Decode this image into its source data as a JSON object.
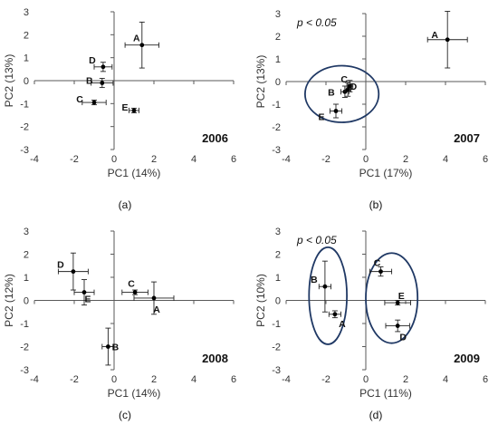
{
  "chart_data": [
    {
      "type": "scatter",
      "panel_label": "(a)",
      "year_label": "2006",
      "annotation": "",
      "xlabel": "PC1 (14%)",
      "ylabel": "PC2 (13%)",
      "xlim": [
        -4,
        6
      ],
      "ylim": [
        -3,
        3
      ],
      "xticks": [
        "-4",
        "-2",
        "0",
        "2",
        "4",
        "6"
      ],
      "yticks": [
        "-3",
        "-2",
        "-1",
        "0",
        "1",
        "2",
        "3"
      ],
      "grid": false,
      "points": [
        {
          "label": "A",
          "x": 1.4,
          "y": 1.55,
          "xerr": 0.85,
          "yerr": 1.0
        },
        {
          "label": "B",
          "x": -0.6,
          "y": -0.1,
          "xerr": 0.55,
          "yerr": 0.2
        },
        {
          "label": "C",
          "x": -1.0,
          "y": -0.95,
          "xerr": 0.6,
          "yerr": 0.1
        },
        {
          "label": "D",
          "x": -0.55,
          "y": 0.6,
          "xerr": 0.45,
          "yerr": 0.2
        },
        {
          "label": "E",
          "x": 1.0,
          "y": -1.3,
          "xerr": 0.25,
          "yerr": 0.1
        }
      ],
      "ellipses": []
    },
    {
      "type": "scatter",
      "panel_label": "(b)",
      "year_label": "2007",
      "annotation": "p < 0.05",
      "xlabel": "PC1 (17%)",
      "ylabel": "PC2 (13%)",
      "xlim": [
        -4,
        6
      ],
      "ylim": [
        -3,
        3
      ],
      "xticks": [
        "-4",
        "-2",
        "0",
        "2",
        "4",
        "6"
      ],
      "yticks": [
        "-3",
        "-2",
        "-1",
        "0",
        "1",
        "2",
        "3"
      ],
      "grid": false,
      "points": [
        {
          "label": "A",
          "x": 4.1,
          "y": 1.85,
          "xerr": 1.0,
          "yerr": 1.25
        },
        {
          "label": "B",
          "x": -1.05,
          "y": -0.45,
          "xerr": 0.2,
          "yerr": 0.25
        },
        {
          "label": "C",
          "x": -0.9,
          "y": -0.35,
          "xerr": 0.15,
          "yerr": 0.3
        },
        {
          "label": "D",
          "x": -0.8,
          "y": -0.2,
          "xerr": 0.15,
          "yerr": 0.25
        },
        {
          "label": "E",
          "x": -1.5,
          "y": -1.3,
          "xerr": 0.3,
          "yerr": 0.3
        }
      ],
      "ellipses": [
        {
          "cx": -1.2,
          "cy": -0.55,
          "rx": 1.85,
          "ry": 1.25
        }
      ]
    },
    {
      "type": "scatter",
      "panel_label": "(c)",
      "year_label": "2008",
      "annotation": "",
      "xlabel": "PC1 (14%)",
      "ylabel": "PC2 (12%)",
      "xlim": [
        -4,
        6
      ],
      "ylim": [
        -3,
        3
      ],
      "xticks": [
        "-4",
        "-2",
        "0",
        "2",
        "4",
        "6"
      ],
      "yticks": [
        "-3",
        "-2",
        "-1",
        "0",
        "1",
        "2",
        "3"
      ],
      "grid": false,
      "points": [
        {
          "label": "A",
          "x": 2.0,
          "y": 0.1,
          "xerr": 1.0,
          "yerr": 0.7
        },
        {
          "label": "B",
          "x": -0.3,
          "y": -2.0,
          "xerr": 0.3,
          "yerr": 0.8
        },
        {
          "label": "C",
          "x": 1.05,
          "y": 0.35,
          "xerr": 0.65,
          "yerr": 0.1
        },
        {
          "label": "D",
          "x": -2.05,
          "y": 1.25,
          "xerr": 0.75,
          "yerr": 0.8
        },
        {
          "label": "E",
          "x": -1.5,
          "y": 0.35,
          "xerr": 0.5,
          "yerr": 0.55
        }
      ],
      "ellipses": []
    },
    {
      "type": "scatter",
      "panel_label": "(d)",
      "year_label": "2009",
      "annotation": "p < 0.05",
      "xlabel": "PC1 (11%)",
      "ylabel": "PC2 (10%)",
      "xlim": [
        -4,
        6
      ],
      "ylim": [
        -3,
        3
      ],
      "xticks": [
        "-4",
        "-2",
        "0",
        "2",
        "4",
        "6"
      ],
      "yticks": [
        "-3",
        "-2",
        "-1",
        "0",
        "1",
        "2",
        "3"
      ],
      "grid": false,
      "points": [
        {
          "label": "A",
          "x": -1.55,
          "y": -0.6,
          "xerr": 0.3,
          "yerr": 0.15
        },
        {
          "label": "B",
          "x": -2.05,
          "y": 0.6,
          "xerr": 0.3,
          "yerr": 1.1
        },
        {
          "label": "C",
          "x": 0.75,
          "y": 1.25,
          "xerr": 0.55,
          "yerr": 0.2
        },
        {
          "label": "D",
          "x": 1.6,
          "y": -1.1,
          "xerr": 0.6,
          "yerr": 0.25
        },
        {
          "label": "E",
          "x": 1.6,
          "y": -0.1,
          "xerr": 0.65,
          "yerr": 0.1
        }
      ],
      "ellipses": [
        {
          "cx": -1.9,
          "cy": 0.2,
          "rx": 0.95,
          "ry": 2.1
        },
        {
          "cx": 1.3,
          "cy": 0.1,
          "rx": 1.3,
          "ry": 1.95
        }
      ]
    }
  ],
  "colors": {
    "axis": "#595959",
    "text": "#333333",
    "points": "#000000",
    "ellipse": "#1f3864"
  }
}
